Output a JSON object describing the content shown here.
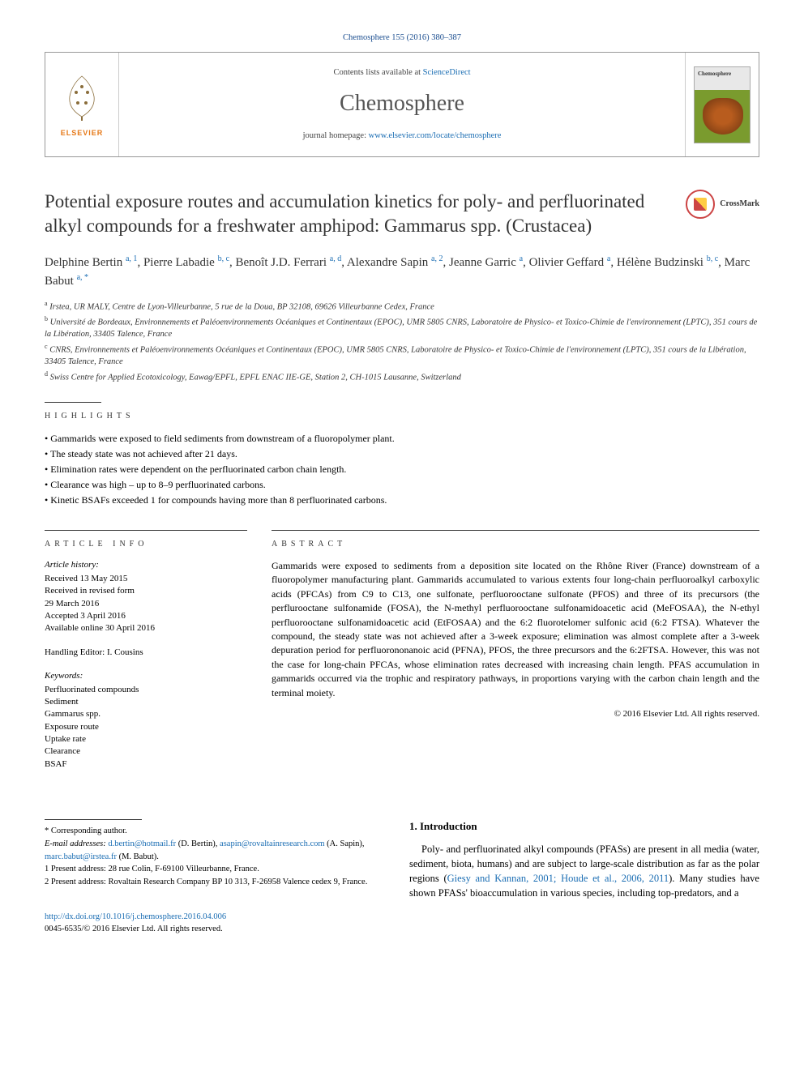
{
  "citation": "Chemosphere 155 (2016) 380–387",
  "header": {
    "contents_prefix": "Contents lists available at ",
    "contents_link": "ScienceDirect",
    "journal": "Chemosphere",
    "homepage_prefix": "journal homepage: ",
    "homepage_url": "www.elsevier.com/locate/chemosphere",
    "publisher": "ELSEVIER",
    "cover_label": "Chemosphere"
  },
  "title": "Potential exposure routes and accumulation kinetics for poly- and perfluorinated alkyl compounds for a freshwater amphipod: Gammarus spp. (Crustacea)",
  "crossmark": "CrossMark",
  "authors": [
    {
      "name": "Delphine Bertin",
      "sup": "a, 1"
    },
    {
      "name": "Pierre Labadie",
      "sup": "b, c"
    },
    {
      "name": "Benoît J.D. Ferrari",
      "sup": "a, d"
    },
    {
      "name": "Alexandre Sapin",
      "sup": "a, 2"
    },
    {
      "name": "Jeanne Garric",
      "sup": "a"
    },
    {
      "name": "Olivier Geffard",
      "sup": "a"
    },
    {
      "name": "Hélène Budzinski",
      "sup": "b, c"
    },
    {
      "name": "Marc Babut",
      "sup": "a, *"
    }
  ],
  "affiliations": [
    {
      "sup": "a",
      "text": "Irstea, UR MALY, Centre de Lyon-Villeurbanne, 5 rue de la Doua, BP 32108, 69626 Villeurbanne Cedex, France"
    },
    {
      "sup": "b",
      "text": "Université de Bordeaux, Environnements et Paléoenvironnements Océaniques et Continentaux (EPOC), UMR 5805 CNRS, Laboratoire de Physico- et Toxico-Chimie de l'environnement (LPTC), 351 cours de la Libération, 33405 Talence, France"
    },
    {
      "sup": "c",
      "text": "CNRS, Environnements et Paléoenvironnements Océaniques et Continentaux (EPOC), UMR 5805 CNRS, Laboratoire de Physico- et Toxico-Chimie de l'environnement (LPTC), 351 cours de la Libération, 33405 Talence, France"
    },
    {
      "sup": "d",
      "text": "Swiss Centre for Applied Ecotoxicology, Eawag/EPFL, EPFL ENAC IIE-GE, Station 2, CH-1015 Lausanne, Switzerland"
    }
  ],
  "highlights_label": "HIGHLIGHTS",
  "highlights": [
    "Gammarids were exposed to field sediments from downstream of a fluoropolymer plant.",
    "The steady state was not achieved after 21 days.",
    "Elimination rates were dependent on the perfluorinated carbon chain length.",
    "Clearance was high – up to 8–9 perfluorinated carbons.",
    "Kinetic BSAFs exceeded 1 for compounds having more than 8 perfluorinated carbons."
  ],
  "article_info": {
    "label": "ARTICLE INFO",
    "history_label": "Article history:",
    "history": "Received 13 May 2015\nReceived in revised form\n29 March 2016\nAccepted 3 April 2016\nAvailable online 30 April 2016",
    "handling": "Handling Editor: I. Cousins",
    "keywords_label": "Keywords:",
    "keywords": "Perfluorinated compounds\nSediment\nGammarus spp.\nExposure route\nUptake rate\nClearance\nBSAF"
  },
  "abstract": {
    "label": "ABSTRACT",
    "text": "Gammarids were exposed to sediments from a deposition site located on the Rhône River (France) downstream of a fluoropolymer manufacturing plant. Gammarids accumulated to various extents four long-chain perfluoroalkyl carboxylic acids (PFCAs) from C9 to C13, one sulfonate, perfluorooctane sulfonate (PFOS) and three of its precursors (the perflurooctane sulfonamide (FOSA), the N-methyl perfluorooctane sulfonamidoacetic acid (MeFOSAA), the N-ethyl perfluorooctane sulfonamidoacetic acid (EtFOSAA) and the 6:2 fluorotelomer sulfonic acid (6:2 FTSA). Whatever the compound, the steady state was not achieved after a 3-week exposure; elimination was almost complete after a 3-week depuration period for perfluorononanoic acid (PFNA), PFOS, the three precursors and the 6:2FTSA. However, this was not the case for long-chain PFCAs, whose elimination rates decreased with increasing chain length. PFAS accumulation in gammarids occurred via the trophic and respiratory pathways, in proportions varying with the carbon chain length and the terminal moiety.",
    "copyright": "© 2016 Elsevier Ltd. All rights reserved."
  },
  "footnotes": {
    "corr": "* Corresponding author.",
    "email_label": "E-mail addresses: ",
    "emails": "d.bertin@hotmail.fr (D. Bertin), asapin@rovaltainresearch.com (A. Sapin), marc.babut@irstea.fr (M. Babut).",
    "n1": "1  Present address: 28 rue Colin, F-69100 Villeurbanne, France.",
    "n2": "2  Present address: Rovaltain Research Company BP 10 313, F-26958 Valence cedex 9, France."
  },
  "doi": {
    "url": "http://dx.doi.org/10.1016/j.chemosphere.2016.04.006",
    "issn": "0045-6535/© 2016 Elsevier Ltd. All rights reserved."
  },
  "intro": {
    "heading": "1. Introduction",
    "text": "Poly- and perfluorinated alkyl compounds (PFASs) are present in all media (water, sediment, biota, humans) and are subject to large-scale distribution as far as the polar regions (Giesy and Kannan, 2001; Houde et al., 2006, 2011). Many studies have shown PFASs' bioaccumulation in various species, including top-predators, and a"
  },
  "colors": {
    "link": "#1a6db3",
    "publisher": "#e67817",
    "text": "#333333",
    "rule": "#333333",
    "border": "#999999"
  }
}
